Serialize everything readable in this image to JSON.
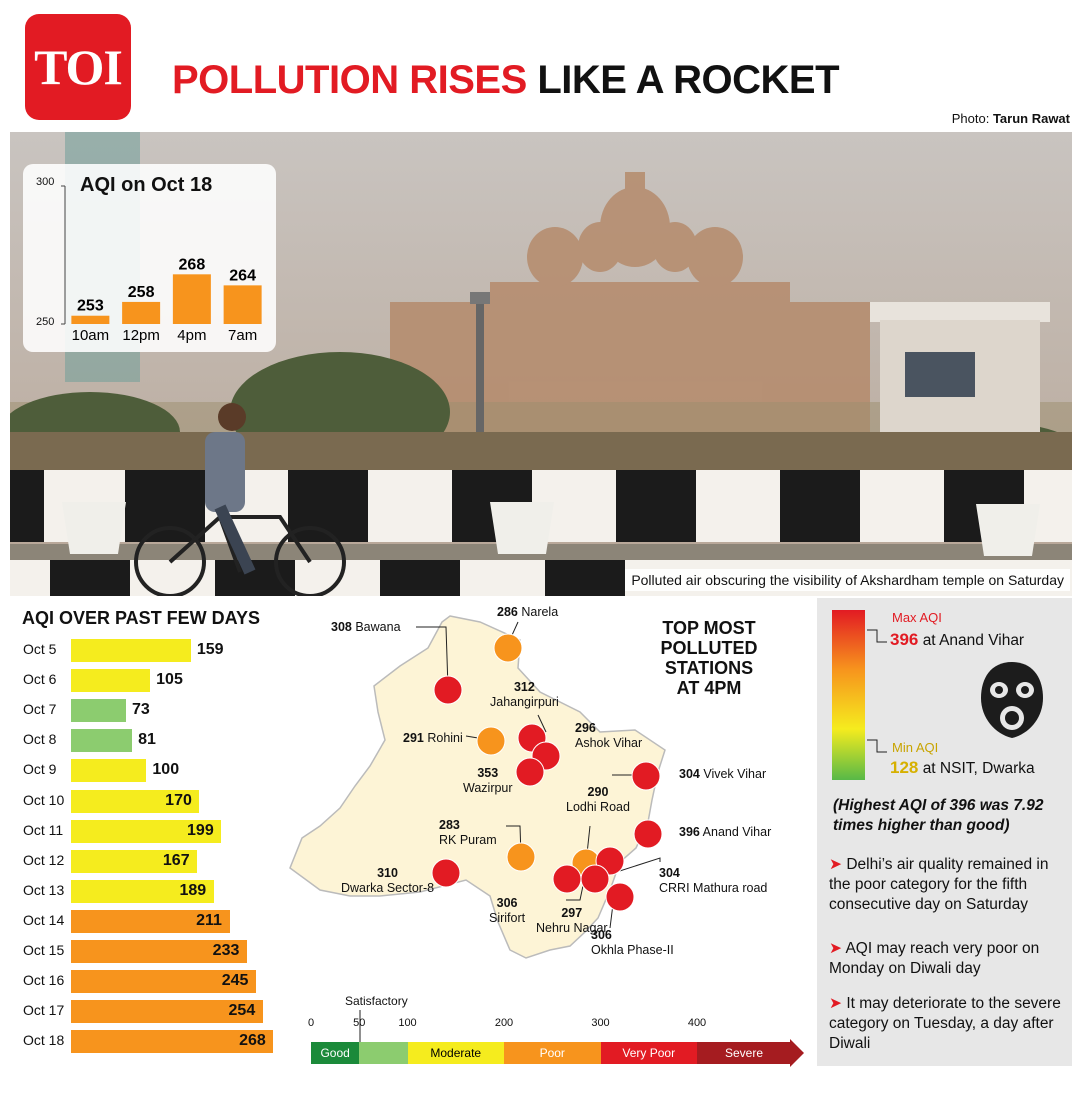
{
  "header": {
    "logo": "TOI",
    "headline_red": "POLLUTION RISES",
    "headline_black": "LIKE A ROCKET",
    "credit_prefix": "Photo:",
    "credit_name": "Tarun Rawat"
  },
  "photo": {
    "caption": "Polluted air obscuring the visibility of Akshardham temple on Saturday"
  },
  "chart_data": [
    {
      "type": "bar",
      "title": "AQI on Oct 18",
      "categories": [
        "10am",
        "12pm",
        "4pm",
        "7am"
      ],
      "values": [
        253,
        258,
        268,
        264
      ],
      "ylim": [
        250,
        300
      ],
      "yticks": [
        "300",
        "250"
      ],
      "color": "#f7941d"
    },
    {
      "type": "bar",
      "orientation": "horizontal",
      "title": "AQI OVER PAST FEW DAYS",
      "categories": [
        "Oct 5",
        "Oct 6",
        "Oct 7",
        "Oct 8",
        "Oct 9",
        "Oct 10",
        "Oct 11",
        "Oct 12",
        "Oct 13",
        "Oct 14",
        "Oct 15",
        "Oct 16",
        "Oct 17",
        "Oct 18"
      ],
      "values": [
        159,
        105,
        73,
        81,
        100,
        170,
        199,
        167,
        189,
        211,
        233,
        245,
        254,
        268
      ],
      "colors": [
        "#f5ec1e",
        "#f5ec1e",
        "#8ccc6f",
        "#8ccc6f",
        "#f5ec1e",
        "#f5ec1e",
        "#f5ec1e",
        "#f5ec1e",
        "#f5ec1e",
        "#f7941d",
        "#f7941d",
        "#f7941d",
        "#f7941d",
        "#f7941d"
      ]
    }
  ],
  "map": {
    "title": "TOP MOST POLLUTED STATIONS AT 4PM",
    "stations": [
      {
        "value": "308",
        "name": "Bawana",
        "aqi": 308,
        "color": "#e21b23"
      },
      {
        "value": "286",
        "name": "Narela",
        "aqi": 286,
        "color": "#f7941d"
      },
      {
        "value": "312",
        "name": "Jahangirpuri",
        "aqi": 312,
        "color": "#e21b23"
      },
      {
        "value": "291",
        "name": "Rohini",
        "aqi": 291,
        "color": "#f7941d"
      },
      {
        "value": "296",
        "name": "Ashok Vihar",
        "aqi": 296,
        "color": "#e21b23"
      },
      {
        "value": "353",
        "name": "Wazirpur",
        "aqi": 353,
        "color": "#e21b23"
      },
      {
        "value": "304",
        "name": "Vivek Vihar",
        "aqi": 304,
        "color": "#e21b23"
      },
      {
        "value": "290",
        "name": "Lodhi Road",
        "aqi": 290,
        "color": "#f7941d"
      },
      {
        "value": "396",
        "name": "Anand Vihar",
        "aqi": 396,
        "color": "#e21b23"
      },
      {
        "value": "283",
        "name": "RK Puram",
        "aqi": 283,
        "color": "#f7941d"
      },
      {
        "value": "310",
        "name": "Dwarka Sector-8",
        "aqi": 310,
        "color": "#e21b23"
      },
      {
        "value": "304",
        "name": "CRRI Mathura road",
        "aqi": 304,
        "color": "#e21b23"
      },
      {
        "value": "306",
        "name": "Sirifort",
        "aqi": 306,
        "color": "#e21b23"
      },
      {
        "value": "297",
        "name": "Nehru Nagar",
        "aqi": 297,
        "color": "#e21b23"
      },
      {
        "value": "306",
        "name": "Okhla Phase-II",
        "aqi": 306,
        "color": "#e21b23"
      }
    ]
  },
  "scale": {
    "ticks": [
      "0",
      "50",
      "100",
      "200",
      "300",
      "400"
    ],
    "satisfactory_label": "Satisfactory",
    "categories": [
      {
        "label": "Good",
        "color": "#1b8a3a",
        "text_color": "#ffffff"
      },
      {
        "label": "",
        "color": "#8ccc6f",
        "text_color": "#000000"
      },
      {
        "label": "Moderate",
        "color": "#f5ec1e",
        "text_color": "#000000"
      },
      {
        "label": "Poor",
        "color": "#f7941d",
        "text_color": "#ffffff"
      },
      {
        "label": "Very Poor",
        "color": "#e21b23",
        "text_color": "#ffffff"
      },
      {
        "label": "Severe",
        "color": "#a51c20",
        "text_color": "#ffffff"
      }
    ]
  },
  "panel": {
    "max_label": "Max AQI",
    "max_value": "396",
    "max_place": "at Anand Vihar",
    "min_label": "Min AQI",
    "min_value": "128",
    "min_place": "at NSIT, Dwarka",
    "note": "(Highest AQI of 396 was 7.92 times higher than good)",
    "bullets": [
      "Delhi’s air quality remained in the poor category for the fifth consecutive day on Saturday",
      "AQI may reach very poor on Monday on Diwali day",
      "It may deteriorate to the severe category on Tuesday, a day after Diwali"
    ]
  }
}
